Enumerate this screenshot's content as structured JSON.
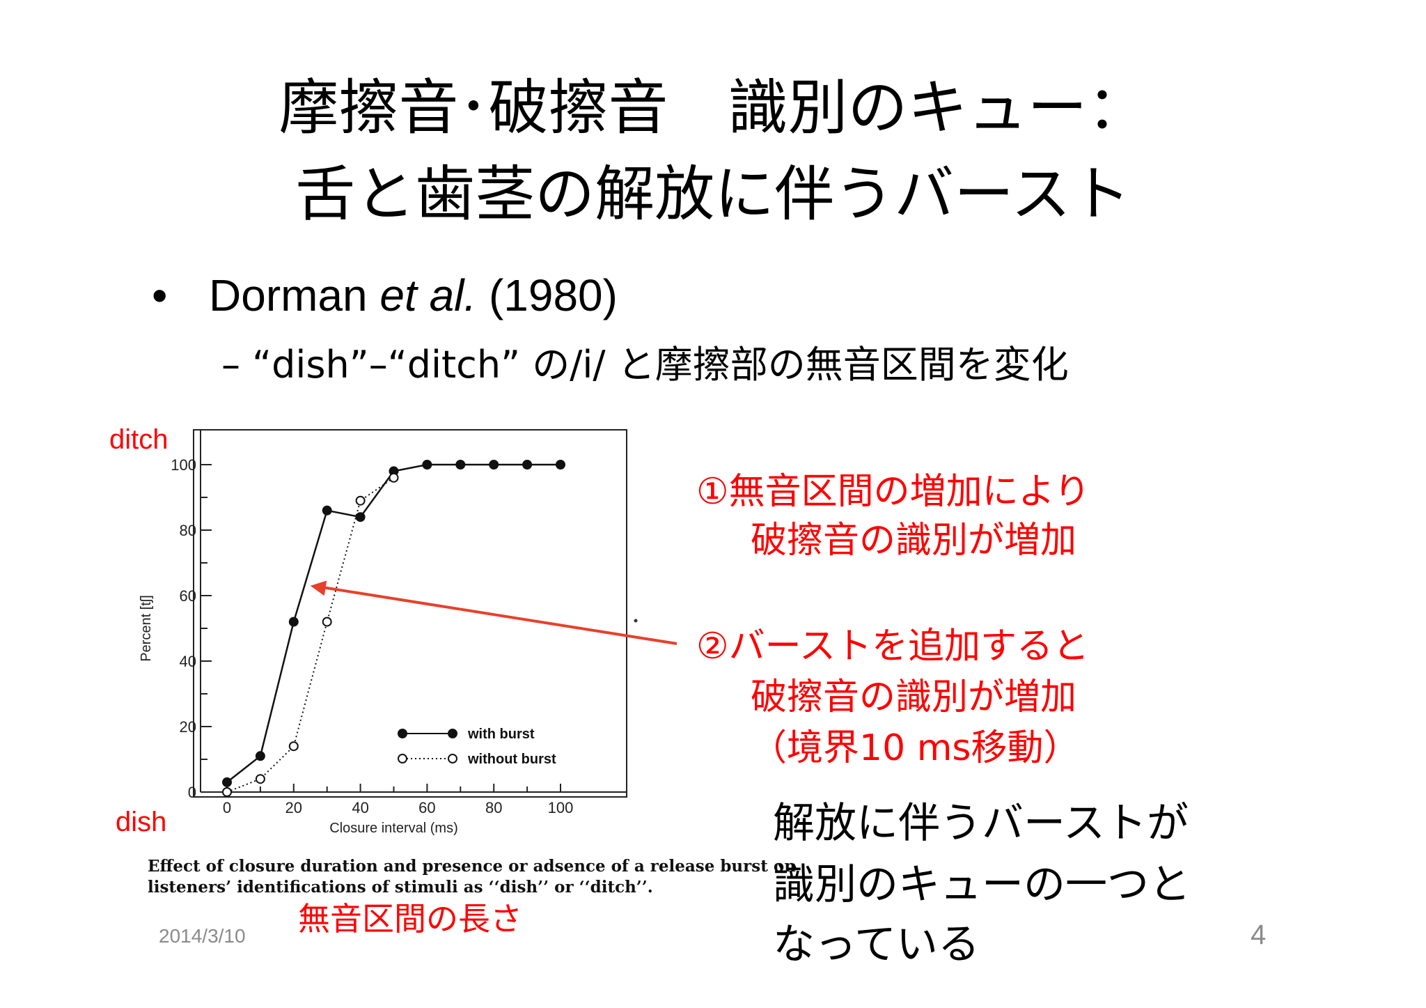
{
  "slide": {
    "title_line1": "摩擦音･破擦音　識別のキュー：",
    "title_line2": "舌と歯茎の解放に伴うバースト",
    "bullet1_prefix": "Dorman ",
    "bullet1_italic": "et al.",
    "bullet1_suffix": " (1980)",
    "bullet2": "– “dish”–“ditch” の/i/ と摩擦部の無音区間を変化",
    "annot1_line1": "①無音区間の増加により",
    "annot1_line2": "破擦音の識別が増加",
    "annot2_line1": "②バーストを追加すると",
    "annot2_line2": "破擦音の識別が増加",
    "annot2_line3": "（境界10 ms移動）",
    "note_line1": "解放に伴うバーストが",
    "note_line2": "識別のキューの一つと",
    "note_line3": "なっている",
    "label_ditch": "ditch",
    "label_dish": "dish",
    "xaxis_note": "無音区間の長さ",
    "caption_line1": "Effect of closure duration and presence or adsence of a release burst on",
    "caption_line2": "listeners’ identifications of stimuli as ‘‘dish’’ or ‘‘ditch’’.",
    "date": "2014/3/10",
    "page_number": "4"
  },
  "colors": {
    "accent_red": "#ff0000",
    "arrow_red": "#e8402a",
    "footer_gray": "#8a8a8a"
  },
  "chart_data": {
    "type": "line",
    "xlabel": "Closure interval (ms)",
    "ylabel": "Percent [tʃ]",
    "xlim": [
      0,
      100
    ],
    "ylim": [
      0,
      100
    ],
    "x_ticks": [
      0,
      20,
      40,
      60,
      80,
      100
    ],
    "y_ticks": [
      0,
      20,
      40,
      60,
      80,
      100
    ],
    "legend_position": "bottom-right",
    "grid": false,
    "series": [
      {
        "name": "with burst",
        "marker": "filled",
        "line": "solid",
        "x": [
          0,
          10,
          20,
          30,
          40,
          50,
          60,
          70,
          80,
          90,
          100
        ],
        "y": [
          3,
          11,
          52,
          86,
          84,
          98,
          100,
          100,
          100,
          100,
          100
        ]
      },
      {
        "name": "without burst",
        "marker": "open",
        "line": "dotted",
        "x": [
          0,
          10,
          20,
          30,
          40,
          50
        ],
        "y": [
          0,
          4,
          14,
          52,
          89,
          96
        ]
      }
    ],
    "annotation_arrow": {
      "target_x": 25,
      "target_y": 63
    }
  }
}
